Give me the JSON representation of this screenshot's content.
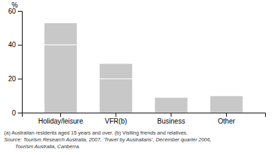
{
  "chart_data": {
    "type": "bar",
    "stacked": true,
    "categories": [
      "Holiday/leisure",
      "VFR(b)",
      "Business",
      "Other"
    ],
    "series": [
      {
        "color": "#c8c8c8",
        "values": [
          40,
          20,
          0,
          0
        ]
      },
      {
        "color": "#c8c8c8",
        "values": [
          13,
          9,
          9,
          10
        ]
      }
    ],
    "ylabel": "%",
    "ylim": [
      0,
      60
    ],
    "yticks": [
      0,
      20,
      40,
      60
    ],
    "grid": false,
    "annotations": [
      "(a) Australian residents aged 15 years and over.  (b) Visiting friends and relatives.",
      "Source: Tourism Research Australia, 2007, ‘Travel by Australians’, December quarter 2006,",
      "Tourism Australia, Canberra."
    ]
  }
}
